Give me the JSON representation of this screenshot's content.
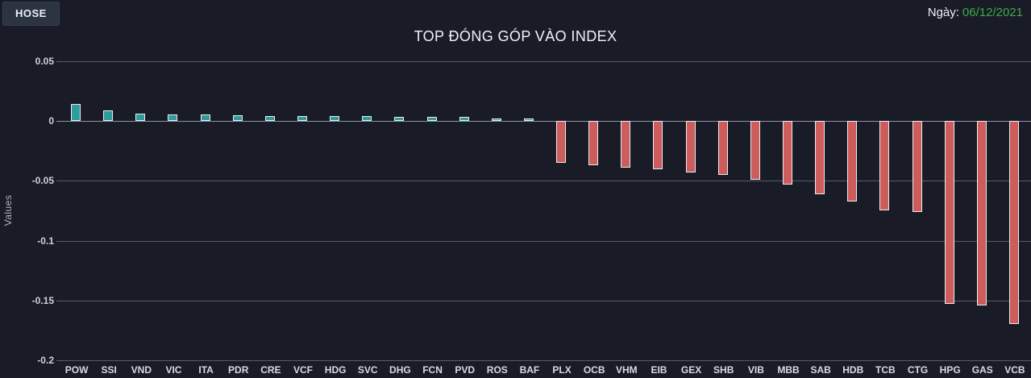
{
  "header": {
    "exchange_tab": "HOSE",
    "date_label": "Ngày:",
    "date_value": "06/12/2021"
  },
  "colors": {
    "background": "#191c26",
    "positive_bar": "#2d9c9c",
    "negative_bar": "#cd5c5c",
    "bar_border": "#ebedf1",
    "date_green": "#3fa84b",
    "gridline": "#565b69",
    "text": "#eff3f8"
  },
  "chart_data": {
    "type": "bar",
    "title": "TOP ĐÓNG GÓP VÀO INDEX",
    "xlabel": "",
    "ylabel": "Values",
    "ylim": [
      -0.2,
      0.05
    ],
    "yticks": [
      0.05,
      0,
      -0.05,
      -0.1,
      -0.15,
      -0.2
    ],
    "grid": true,
    "legend": false,
    "categories": [
      "POW",
      "SSI",
      "VND",
      "VIC",
      "ITA",
      "PDR",
      "CRE",
      "VCF",
      "HDG",
      "SVC",
      "DHG",
      "FCN",
      "PVD",
      "ROS",
      "BAF",
      "PLX",
      "OCB",
      "VHM",
      "EIB",
      "GEX",
      "SHB",
      "VIB",
      "MBB",
      "SAB",
      "HDB",
      "TCB",
      "CTG",
      "HPG",
      "GAS",
      "VCB"
    ],
    "values": [
      0.014,
      0.009,
      0.0065,
      0.0055,
      0.0055,
      0.005,
      0.0045,
      0.0045,
      0.004,
      0.004,
      0.0035,
      0.0035,
      0.0035,
      0.002,
      0.002,
      -0.035,
      -0.037,
      -0.039,
      -0.04,
      -0.043,
      -0.045,
      -0.049,
      -0.053,
      -0.061,
      -0.067,
      -0.075,
      -0.076,
      -0.153,
      -0.154,
      -0.17
    ]
  }
}
